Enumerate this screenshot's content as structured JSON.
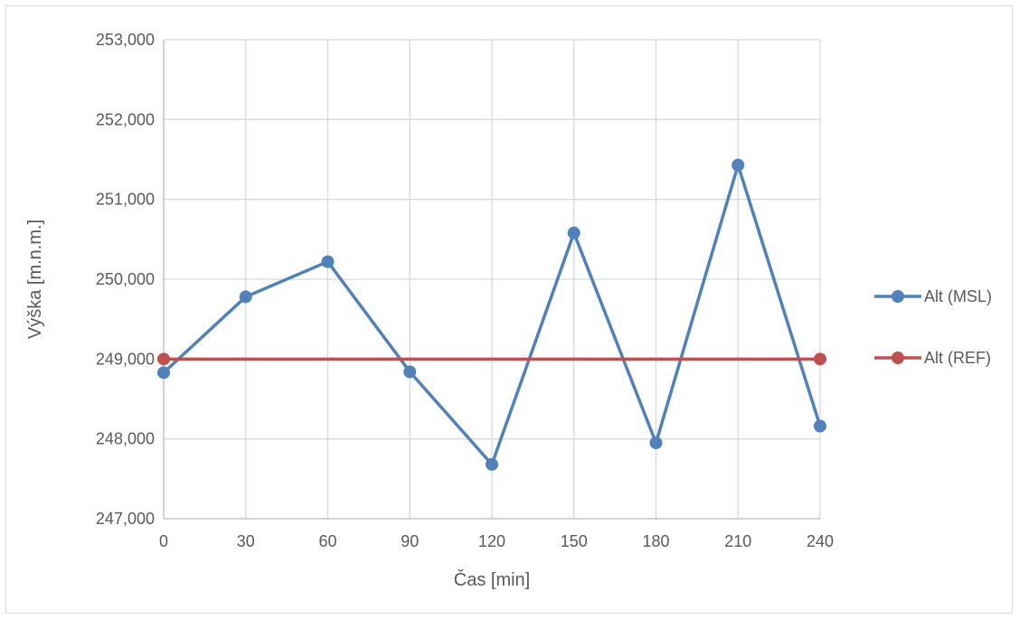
{
  "chart_data": {
    "type": "line",
    "title": "",
    "xlabel": "Čas [min]",
    "ylabel": "Výška [m.n.m.]",
    "x": [
      0,
      30,
      60,
      90,
      120,
      150,
      180,
      210,
      240
    ],
    "x_tick_labels": [
      "0",
      "30",
      "60",
      "90",
      "120",
      "150",
      "180",
      "210",
      "240"
    ],
    "y_tick_values": [
      247,
      248,
      249,
      250,
      251,
      252,
      253
    ],
    "y_tick_labels": [
      "247,000",
      "248,000",
      "249,000",
      "250,000",
      "251,000",
      "252,000",
      "253,000"
    ],
    "ylim": [
      247,
      253
    ],
    "xlim": [
      0,
      240
    ],
    "grid": true,
    "legend_position": "right",
    "series": [
      {
        "name": "Alt (MSL)",
        "color": "#4f81bd",
        "values": [
          248.83,
          249.78,
          250.22,
          248.84,
          247.68,
          250.58,
          247.95,
          251.43,
          248.16
        ]
      },
      {
        "name": "Alt (REF)",
        "color": "#c0504d",
        "values": [
          249.0,
          null,
          null,
          null,
          null,
          null,
          null,
          null,
          249.0
        ]
      }
    ]
  }
}
